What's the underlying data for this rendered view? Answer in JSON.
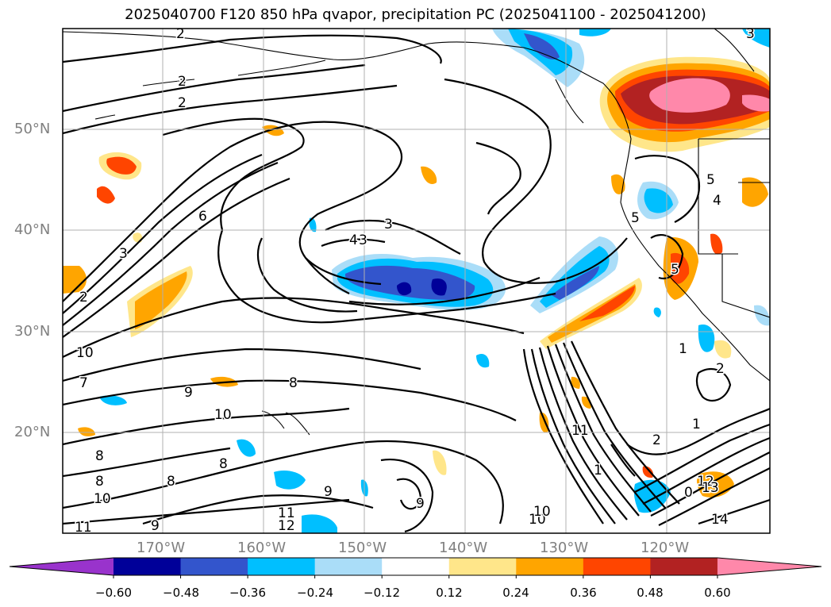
{
  "title": "2025040700 F120 850 hPa qvapor, precipitation PC (2025041100 - 2025041200)",
  "map": {
    "lat_labels": [
      "50°N",
      "40°N",
      "30°N",
      "20°N"
    ],
    "lon_labels": [
      "170°W",
      "160°W",
      "150°W",
      "140°W",
      "130°W",
      "120°W"
    ],
    "gridline_color": "#b0b0b0",
    "axis_label_color": "#808080"
  },
  "contours": {
    "variable": "850 hPa qvapor",
    "line_labels": [
      "2",
      "3",
      "2",
      "3",
      "4",
      "6",
      "3",
      "2",
      "3",
      "2",
      "5",
      "4",
      "5",
      "5",
      "1",
      "2",
      "10",
      "7",
      "9",
      "8",
      "9",
      "10",
      "8",
      "8",
      "8",
      "8",
      "10",
      "9",
      "10",
      "11",
      "12",
      "11",
      "9",
      "10",
      "11",
      "1",
      "2",
      "1",
      "0",
      "12",
      "14",
      "13",
      "3"
    ]
  },
  "colorbar": {
    "variable": "precipitation PC",
    "ticks": [
      "−0.60",
      "−0.48",
      "−0.36",
      "−0.24",
      "−0.12",
      "0.12",
      "0.24",
      "0.36",
      "0.48",
      "0.60"
    ],
    "colors": [
      "#9933cc",
      "#000099",
      "#3355cc",
      "#00bfff",
      "#aaddf8",
      "#ffffff",
      "#ffe68a",
      "#ffa500",
      "#ff4500",
      "#b22222",
      "#ff88aa"
    ]
  }
}
